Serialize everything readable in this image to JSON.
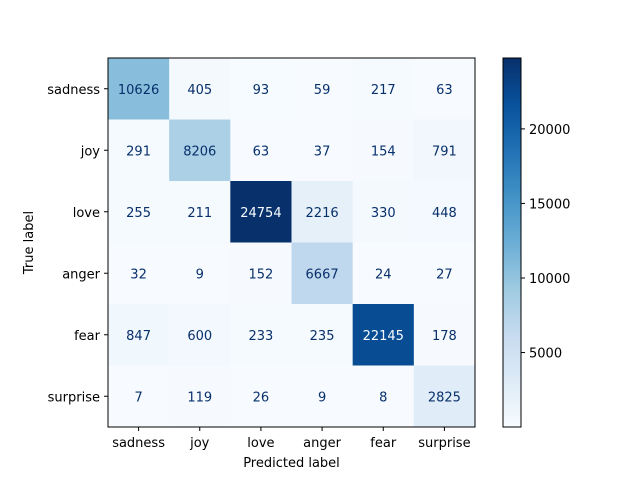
{
  "chart_data": {
    "type": "heatmap",
    "title": "",
    "xlabel": "Predicted label",
    "ylabel": "True label",
    "x_categories": [
      "sadness",
      "joy",
      "love",
      "anger",
      "fear",
      "surprise"
    ],
    "y_categories": [
      "sadness",
      "joy",
      "love",
      "anger",
      "fear",
      "surprise"
    ],
    "values": [
      [
        10626,
        405,
        93,
        59,
        217,
        63
      ],
      [
        291,
        8206,
        63,
        37,
        154,
        791
      ],
      [
        255,
        211,
        24754,
        2216,
        330,
        448
      ],
      [
        32,
        9,
        152,
        6667,
        24,
        27
      ],
      [
        847,
        600,
        233,
        235,
        22145,
        178
      ],
      [
        7,
        119,
        26,
        9,
        8,
        2825
      ]
    ],
    "colormap": "Blues",
    "vmin": 7,
    "vmax": 24754,
    "colorbar_ticks": [
      5000,
      10000,
      15000,
      20000
    ],
    "colorbar_tick_labels": [
      "5000",
      "10000",
      "15000",
      "20000"
    ],
    "text_color_light": "#f7fbff",
    "text_color_dark": "#08306b"
  }
}
